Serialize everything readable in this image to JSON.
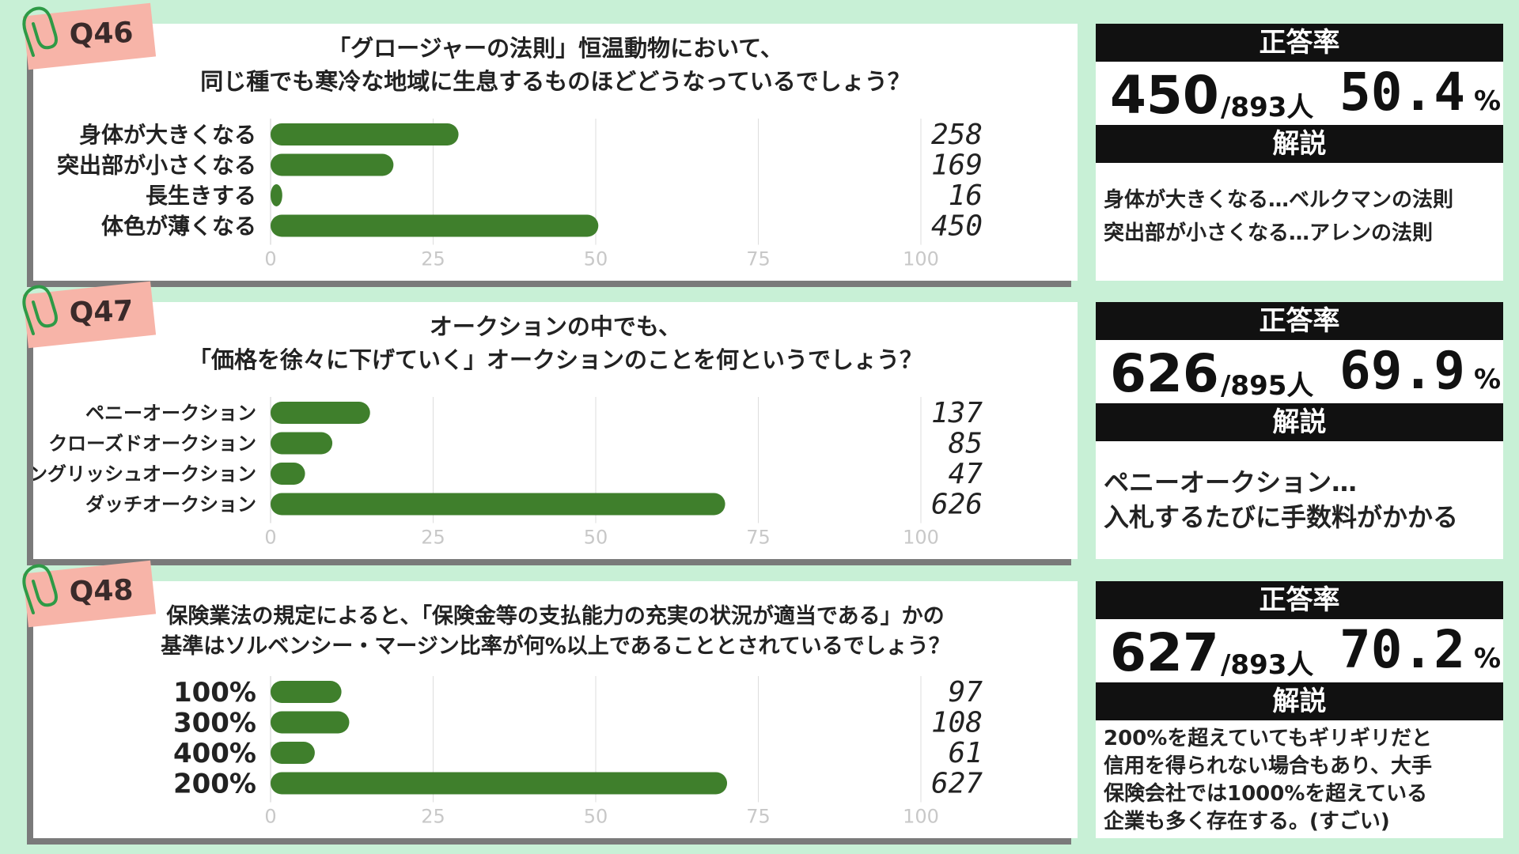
{
  "colors": {
    "bar": "#3f7f2c",
    "background": "#c8f0d6",
    "panel": "#ffffff",
    "tag": "#f7b4a8",
    "header": "#111111"
  },
  "icons": {
    "clip": "paperclip-icon"
  },
  "questions": [
    {
      "id": "Q46",
      "question_lines": [
        "「グロージャーの法則」恒温動物において、",
        "同じ種でも寒冷な地域に生息するものほどどうなっているでしょう？"
      ],
      "stats": {
        "header": "正答率",
        "correct": "450",
        "total": "/893人",
        "percent": "50.4",
        "percent_sign": "%"
      },
      "explanation": {
        "header": "解説",
        "lines": [
          "身体が大きくなる…ベルクマンの法則",
          "突出部が小さくなる…アレンの法則"
        ]
      }
    },
    {
      "id": "Q47",
      "question_lines": [
        "オークションの中でも、",
        "「価格を徐々に下げていく」オークションのことを何というでしょう？"
      ],
      "stats": {
        "header": "正答率",
        "correct": "626",
        "total": "/895人",
        "percent": "69.9",
        "percent_sign": "%"
      },
      "explanation": {
        "header": "解説",
        "lines": [
          "ペニーオークション…",
          "入札するたびに手数料がかかる"
        ]
      }
    },
    {
      "id": "Q48",
      "question_lines": [
        "保険業法の規定によると、「保険金等の支払能力の充実の状況が適当である」かの",
        "基準はソルベンシー・マージン比率が何%以上であることとされているでしょう？"
      ],
      "stats": {
        "header": "正答率",
        "correct": "627",
        "total": "/893人",
        "percent": "70.2",
        "percent_sign": "%"
      },
      "explanation": {
        "header": "解説",
        "lines": [
          "200%を超えていてもギリギリだと",
          "信用を得られない場合もあり、大手",
          "保険会社では1000%を超えている",
          "企業も多く存在する。(すごい)"
        ]
      }
    }
  ],
  "chart_data": [
    {
      "type": "bar",
      "orientation": "horizontal",
      "categories": [
        "身体が大きくなる",
        "突出部が小さくなる",
        "長生きする",
        "体色が薄くなる"
      ],
      "values": [
        258,
        169,
        16,
        450
      ],
      "value_labels": [
        "258",
        "169",
        "16",
        "450"
      ],
      "bar_percent": [
        28.9,
        18.9,
        1.8,
        50.4
      ],
      "x_ticks": [
        "0",
        "25",
        "50",
        "75",
        "100"
      ],
      "xlim": [
        0,
        100
      ],
      "grid": true
    },
    {
      "type": "bar",
      "orientation": "horizontal",
      "categories": [
        "ペニーオークション",
        "クローズドオークション",
        "イングリッシュオークション",
        "ダッチオークション"
      ],
      "values": [
        137,
        85,
        47,
        626
      ],
      "value_labels": [
        "137",
        "85",
        "47",
        "626"
      ],
      "bar_percent": [
        15.3,
        9.5,
        5.3,
        69.9
      ],
      "x_ticks": [
        "0",
        "25",
        "50",
        "75",
        "100"
      ],
      "xlim": [
        0,
        100
      ],
      "grid": true
    },
    {
      "type": "bar",
      "orientation": "horizontal",
      "categories": [
        "100%",
        "300%",
        "400%",
        "200%"
      ],
      "values": [
        97,
        108,
        61,
        627
      ],
      "value_labels": [
        "97",
        "108",
        "61",
        "627"
      ],
      "bar_percent": [
        10.9,
        12.1,
        6.8,
        70.2
      ],
      "x_ticks": [
        "0",
        "25",
        "50",
        "75",
        "100"
      ],
      "xlim": [
        0,
        100
      ],
      "grid": true
    }
  ]
}
